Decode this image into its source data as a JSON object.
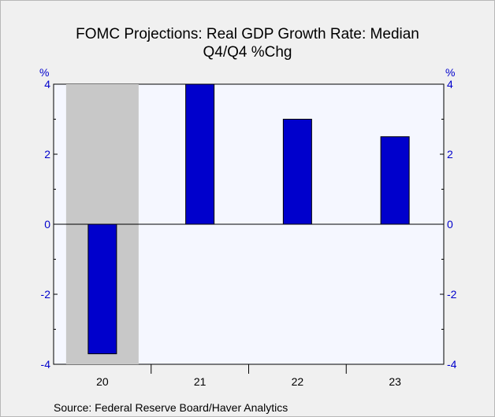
{
  "chart_data": {
    "type": "bar",
    "title": "FOMC Projections: Real GDP Growth Rate: Median",
    "subtitle": "Q4/Q4 %Chg",
    "ylabel_left": "%",
    "ylabel_right": "%",
    "categories": [
      "20",
      "21",
      "22",
      "23"
    ],
    "values": [
      -3.7,
      4.0,
      3.0,
      2.5
    ],
    "ylim": [
      -4,
      4
    ],
    "yticks": [
      "4",
      "2",
      "0",
      "-2",
      "-4"
    ],
    "ytick_values": [
      4,
      2,
      0,
      -2,
      -4
    ],
    "shaded_region": {
      "category": "20"
    },
    "source": "Source:  Federal Reserve Board/Haver Analytics",
    "colors": {
      "bar": "#0000cc",
      "bar_outline": "#000000",
      "plot_bg": "#f5f7ff",
      "recession_shade": "#c8c8c8",
      "tick_labels": "#0000cc"
    }
  }
}
